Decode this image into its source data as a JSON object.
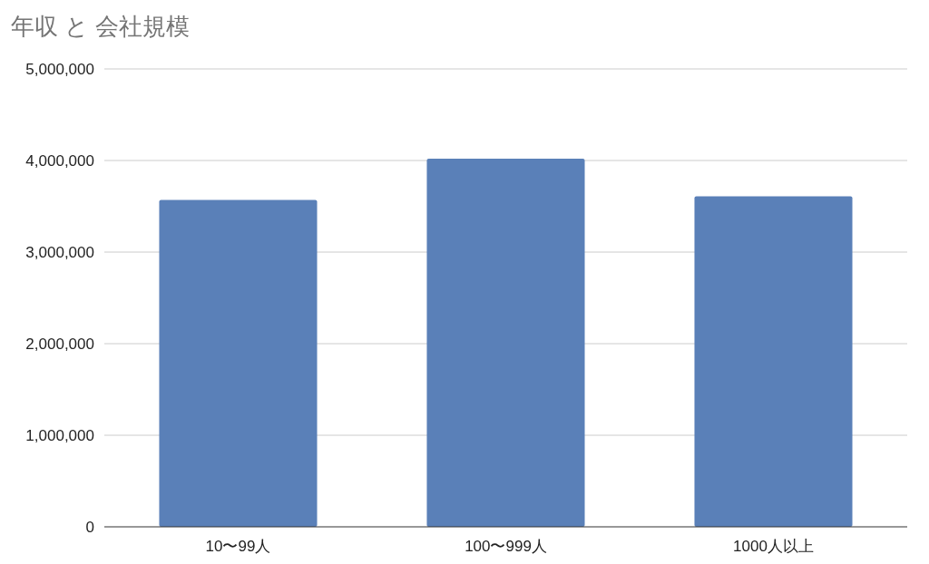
{
  "chart_data": {
    "type": "bar",
    "title": "年収 と 会社規模",
    "categories": [
      "10〜99人",
      "100〜999人",
      "1000人以上"
    ],
    "values": [
      3570000,
      4020000,
      3610000
    ],
    "color": "#5a80b8",
    "ylim": [
      0,
      5000000
    ],
    "yticks": [
      0,
      {
        "value": 1000000,
        "label": "1,000,000"
      },
      {
        "value": 2000000,
        "label": "2,000,000"
      },
      {
        "value": 3000000,
        "label": "3,000,000"
      },
      {
        "value": 4000000,
        "label": "4,000,000"
      },
      {
        "value": 5000000,
        "label": "5,000,000"
      }
    ],
    "grid": "y"
  }
}
